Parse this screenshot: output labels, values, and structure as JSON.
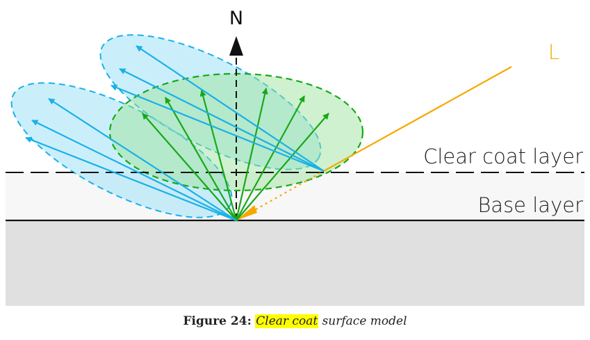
{
  "labels": {
    "normal": "N",
    "light": "L",
    "clear_coat_layer": "Clear coat layer",
    "base_layer": "Base layer"
  },
  "caption": {
    "figure": "Figure 24:",
    "highlight": "Clear coat",
    "rest": "surface model"
  },
  "colors": {
    "light": "#f5a800",
    "clear_coat_lobe": "#1ab0e8",
    "base_lobe": "#18a818",
    "substrate": "#e0e0e0",
    "base_band": "#f7f7f7",
    "caption_highlight": "#ffff00"
  }
}
